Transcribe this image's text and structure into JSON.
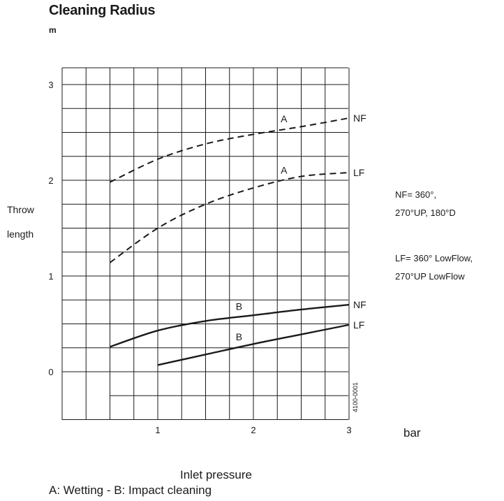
{
  "chart_data": {
    "type": "line",
    "title": "Cleaning Radius",
    "y_unit": "m",
    "ylabel_lines": [
      "Throw",
      "length"
    ],
    "xlabel": "Inlet pressure",
    "x_unit": "bar",
    "caption": "A: Wetting - B: Impact cleaning",
    "figure_code": "4100-0001",
    "x_ticks": [
      "1",
      "2",
      "3"
    ],
    "y_ticks": [
      "0",
      "1",
      "2",
      "3"
    ],
    "xlim": [
      0,
      3
    ],
    "ylim": [
      -0.5,
      3.25
    ],
    "grid": true,
    "series": [
      {
        "curve_label": "A",
        "end_label": "NF",
        "style": "dashed",
        "x": [
          0.5,
          1.0,
          1.5,
          2.0,
          2.5,
          3.0
        ],
        "y": [
          1.98,
          2.22,
          2.38,
          2.48,
          2.56,
          2.65
        ]
      },
      {
        "curve_label": "A",
        "end_label": "LF",
        "style": "dashed",
        "x": [
          0.5,
          1.0,
          1.5,
          2.0,
          2.5,
          3.0
        ],
        "y": [
          1.14,
          1.5,
          1.75,
          1.92,
          2.04,
          2.08
        ]
      },
      {
        "curve_label": "B",
        "end_label": "NF",
        "style": "solid",
        "x": [
          0.5,
          1.0,
          1.5,
          2.0,
          2.5,
          3.0
        ],
        "y": [
          0.26,
          0.43,
          0.53,
          0.59,
          0.65,
          0.7
        ]
      },
      {
        "curve_label": "B",
        "end_label": "LF",
        "style": "solid",
        "x": [
          1.0,
          1.5,
          2.0,
          2.5,
          3.0
        ],
        "y": [
          0.07,
          0.18,
          0.29,
          0.39,
          0.49
        ]
      }
    ]
  },
  "notes": {
    "nf": [
      "NF= 360°,",
      "270°UP, 180°D"
    ],
    "lf": [
      "LF= 360° LowFlow,",
      "270°UP LowFlow"
    ]
  }
}
